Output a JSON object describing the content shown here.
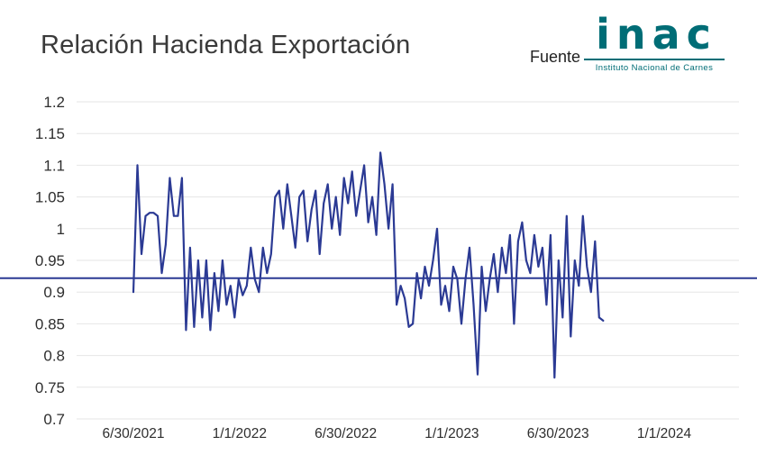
{
  "header": {
    "title": "Relación Hacienda Exportación",
    "source_label": "Fuente",
    "logo_text": "inac",
    "logo_subtitle": "Instituto Nacional de Carnes"
  },
  "colors": {
    "series": "#2b3a94",
    "reference_line": "#2b3a94",
    "grid": "#e6e6e6",
    "axis_text": "#2e2e2e",
    "logo_teal": "#006d76"
  },
  "chart_data": {
    "type": "line",
    "title": "Relación Hacienda Exportación",
    "x_tick_labels": [
      "6/30/2021",
      "1/1/2022",
      "6/30/2022",
      "1/1/2023",
      "6/30/2023",
      "1/1/2024"
    ],
    "y_tick_labels": [
      "1.2",
      "1.15",
      "1.1",
      "1.05",
      "1",
      "0.95",
      "0.9",
      "0.85",
      "0.8",
      "0.75",
      "0.7"
    ],
    "ylim": [
      0.7,
      1.2
    ],
    "reference_value": 0.922,
    "grid": true,
    "legend": "none",
    "values": [
      0.9,
      1.1,
      0.96,
      1.02,
      1.025,
      1.025,
      1.02,
      0.93,
      0.975,
      1.08,
      1.02,
      1.02,
      1.08,
      0.84,
      0.97,
      0.845,
      0.95,
      0.86,
      0.95,
      0.84,
      0.93,
      0.87,
      0.95,
      0.88,
      0.91,
      0.86,
      0.92,
      0.895,
      0.91,
      0.97,
      0.92,
      0.9,
      0.97,
      0.93,
      0.96,
      1.05,
      1.06,
      1.0,
      1.07,
      1.02,
      0.97,
      1.05,
      1.06,
      0.98,
      1.03,
      1.06,
      0.96,
      1.04,
      1.07,
      1.0,
      1.05,
      0.99,
      1.08,
      1.04,
      1.09,
      1.02,
      1.06,
      1.1,
      1.01,
      1.05,
      0.99,
      1.12,
      1.07,
      1.0,
      1.07,
      0.88,
      0.91,
      0.89,
      0.845,
      0.85,
      0.93,
      0.89,
      0.94,
      0.91,
      0.95,
      1.0,
      0.88,
      0.91,
      0.87,
      0.94,
      0.92,
      0.85,
      0.92,
      0.97,
      0.88,
      0.77,
      0.94,
      0.87,
      0.92,
      0.96,
      0.9,
      0.97,
      0.93,
      0.99,
      0.85,
      0.98,
      1.01,
      0.95,
      0.93,
      0.99,
      0.94,
      0.97,
      0.88,
      0.99,
      0.765,
      0.95,
      0.86,
      1.02,
      0.83,
      0.95,
      0.91,
      1.02,
      0.94,
      0.9,
      0.98,
      0.86,
      0.855
    ]
  }
}
